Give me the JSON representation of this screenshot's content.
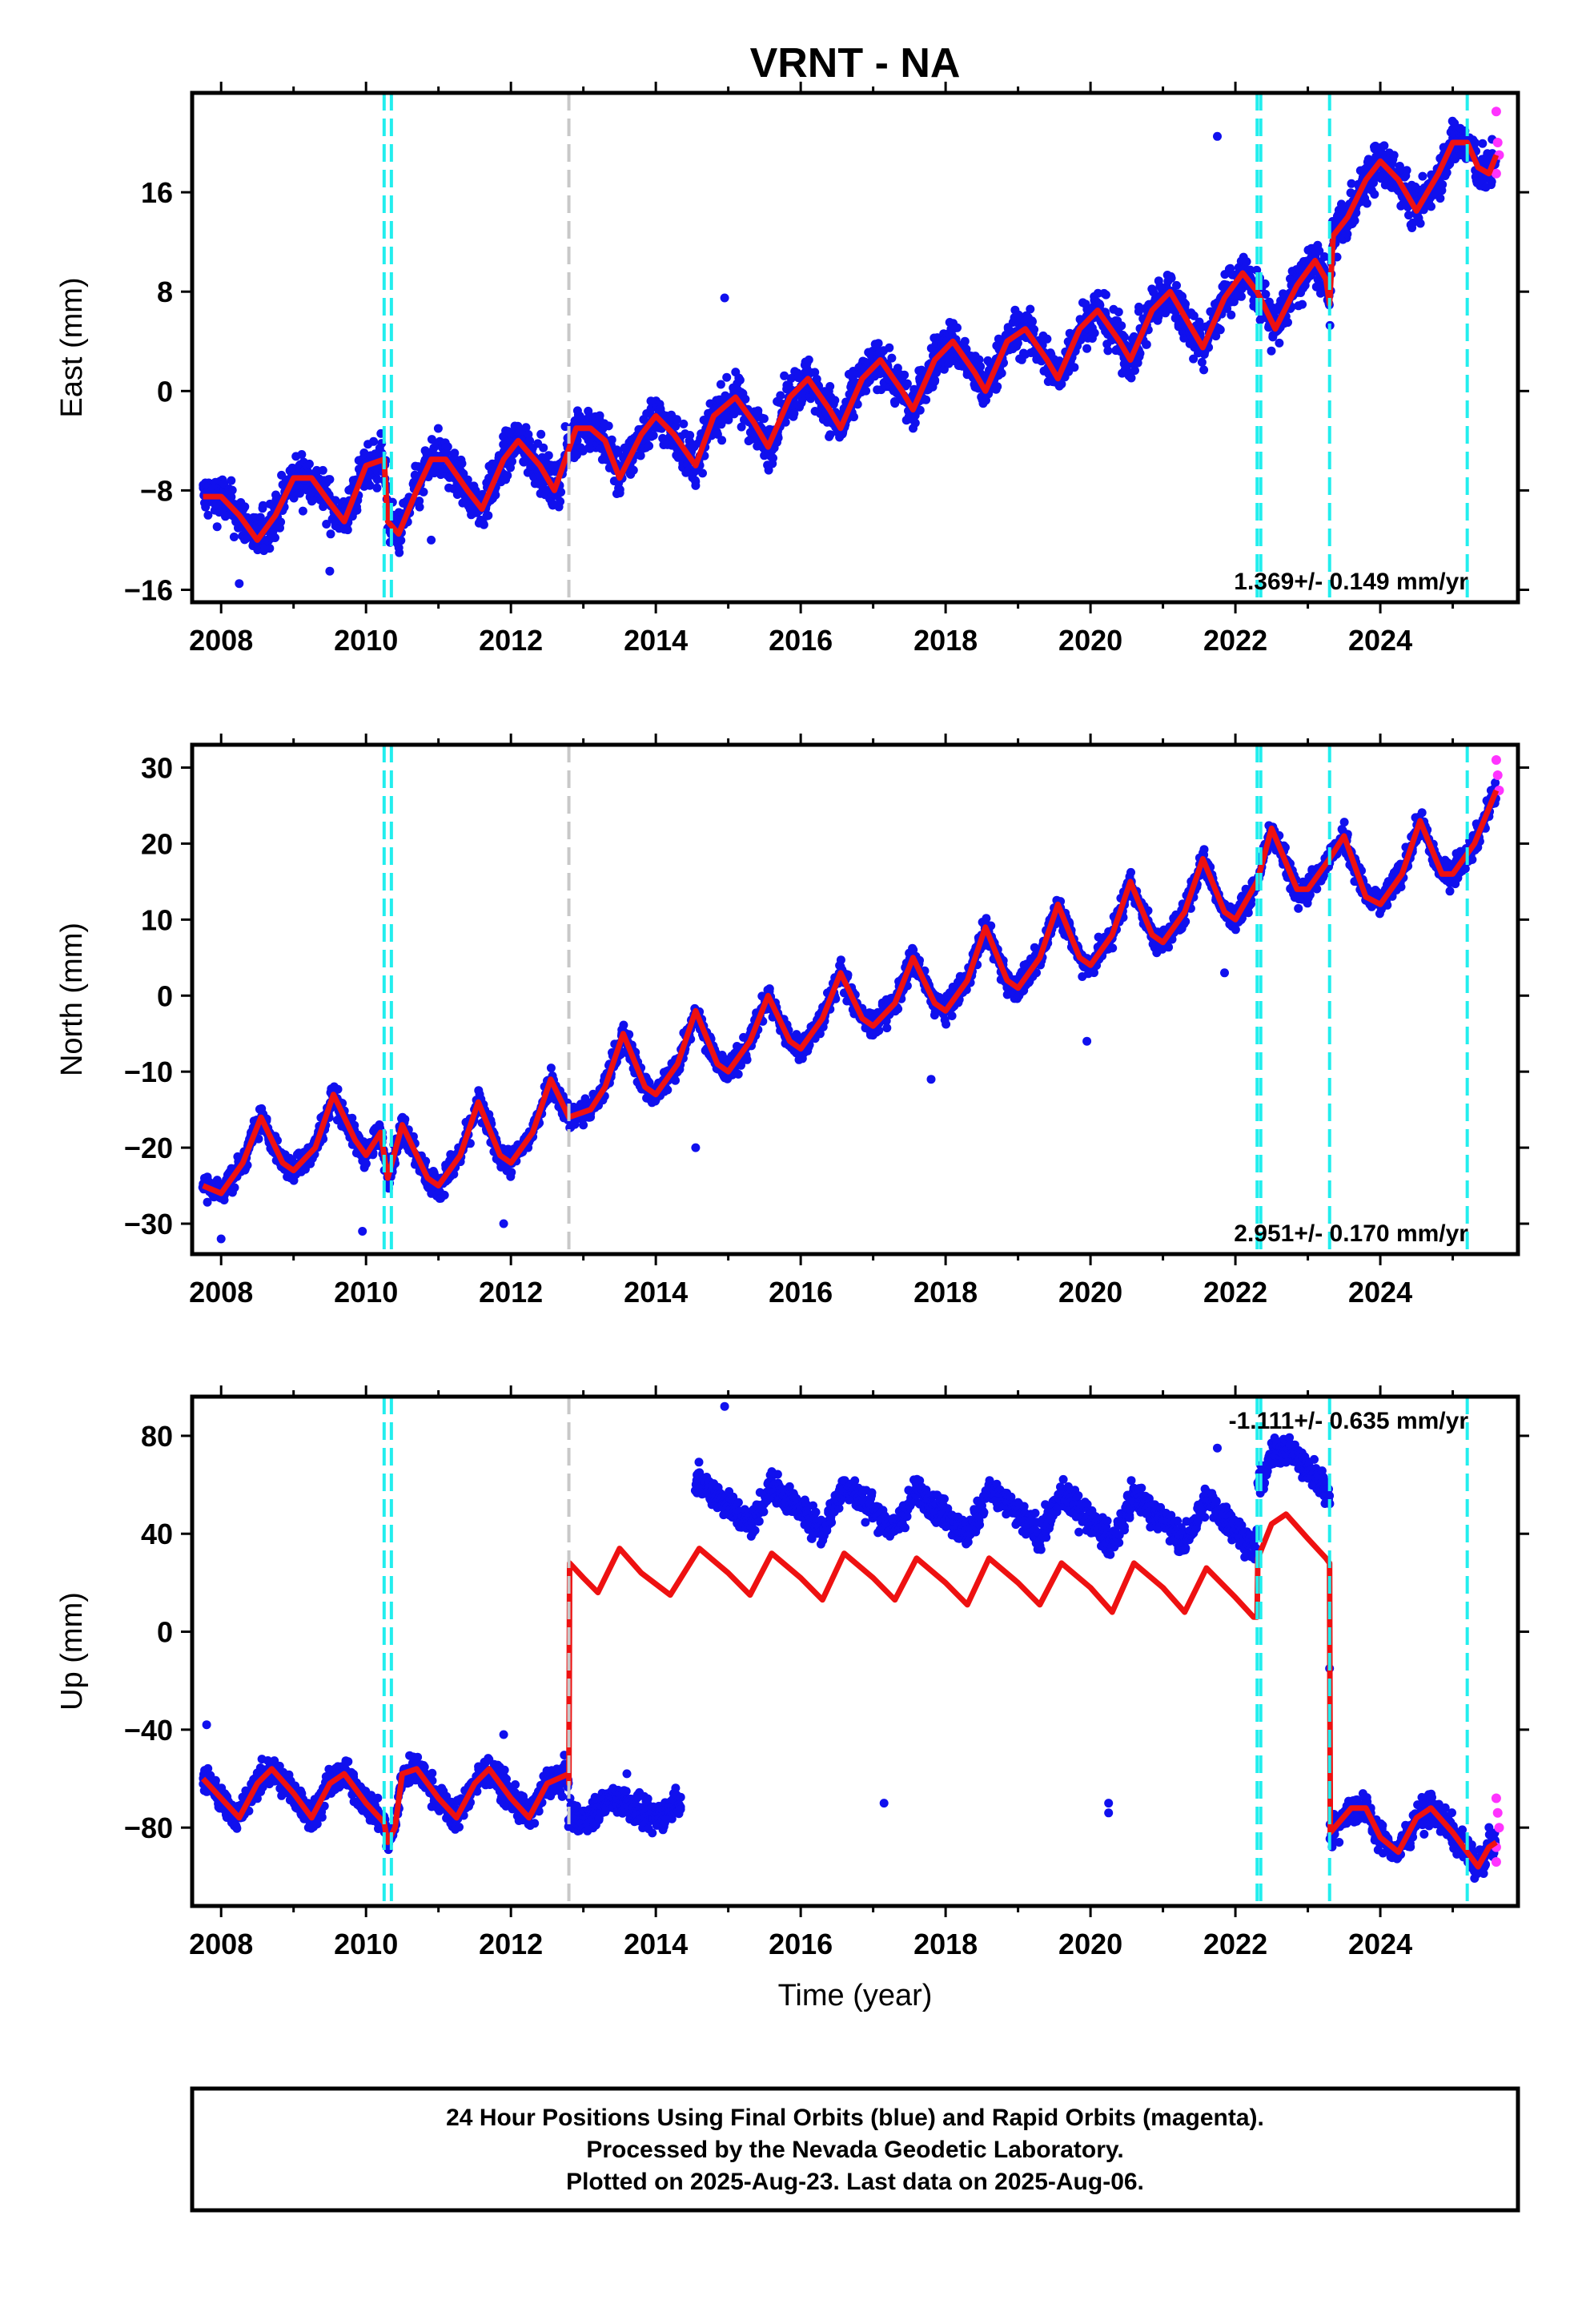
{
  "title": "VRNT - NA",
  "colors": {
    "final_orbits": "#1010ee",
    "rapid_orbits": "#ff33ff",
    "model": "#ee1111",
    "equipment_change": "#22eeee",
    "other_event": "#c8c8c8"
  },
  "chart_data": [
    {
      "type": "scatter",
      "ylabel": "East (mm)",
      "xlabel": "",
      "xlim": [
        2007.6,
        2025.9
      ],
      "ylim": [
        -17,
        24
      ],
      "xticks": [
        "2008",
        "2010",
        "2012",
        "2014",
        "2016",
        "2018",
        "2020",
        "2022",
        "2024"
      ],
      "yticks": [
        "-16",
        "-8",
        "0",
        "8",
        "16"
      ],
      "rate_label": "1.369+/- 0.149 mm/yr",
      "rate_position": "bottom-right",
      "model_knots": [
        [
          2007.75,
          -8.5
        ],
        [
          2008.0,
          -8.5
        ],
        [
          2008.25,
          -10
        ],
        [
          2008.5,
          -12
        ],
        [
          2008.75,
          -10
        ],
        [
          2009.0,
          -7
        ],
        [
          2009.25,
          -7
        ],
        [
          2009.5,
          -9
        ],
        [
          2009.7,
          -10.5
        ],
        [
          2010.0,
          -6
        ],
        [
          2010.25,
          -5.5
        ],
        [
          2010.3,
          -10.5
        ],
        [
          2010.45,
          -11.5
        ],
        [
          2010.7,
          -8
        ],
        [
          2010.9,
          -5.5
        ],
        [
          2011.1,
          -5.5
        ],
        [
          2011.4,
          -8
        ],
        [
          2011.6,
          -9.5
        ],
        [
          2011.9,
          -5.5
        ],
        [
          2012.1,
          -4
        ],
        [
          2012.4,
          -6
        ],
        [
          2012.6,
          -8
        ],
        [
          2012.9,
          -3
        ],
        [
          2013.1,
          -3
        ],
        [
          2013.3,
          -4
        ],
        [
          2013.5,
          -7
        ],
        [
          2013.8,
          -3.5
        ],
        [
          2014.0,
          -2
        ],
        [
          2014.25,
          -3.5
        ],
        [
          2014.55,
          -6
        ],
        [
          2014.8,
          -2
        ],
        [
          2015.1,
          -0.5
        ],
        [
          2015.35,
          -2.5
        ],
        [
          2015.55,
          -4.5
        ],
        [
          2015.85,
          -0.5
        ],
        [
          2016.1,
          1
        ],
        [
          2016.4,
          -1.5
        ],
        [
          2016.55,
          -3
        ],
        [
          2016.85,
          1
        ],
        [
          2017.1,
          2.5
        ],
        [
          2017.4,
          0
        ],
        [
          2017.55,
          -1.5
        ],
        [
          2017.85,
          2.5
        ],
        [
          2018.1,
          4
        ],
        [
          2018.4,
          1.5
        ],
        [
          2018.55,
          0
        ],
        [
          2018.85,
          4
        ],
        [
          2019.1,
          5
        ],
        [
          2019.4,
          2.5
        ],
        [
          2019.55,
          1
        ],
        [
          2019.85,
          5
        ],
        [
          2020.1,
          6.5
        ],
        [
          2020.4,
          4
        ],
        [
          2020.55,
          2.5
        ],
        [
          2020.85,
          6.5
        ],
        [
          2021.1,
          8
        ],
        [
          2021.4,
          5
        ],
        [
          2021.55,
          3.5
        ],
        [
          2021.85,
          7.5
        ],
        [
          2022.1,
          9.5
        ],
        [
          2022.3,
          8
        ],
        [
          2022.55,
          5
        ],
        [
          2022.85,
          8.5
        ],
        [
          2023.1,
          10.5
        ],
        [
          2023.25,
          9
        ],
        [
          2023.3,
          7
        ],
        [
          2023.35,
          12.5
        ],
        [
          2023.55,
          14
        ],
        [
          2023.8,
          17
        ],
        [
          2024.0,
          18.5
        ],
        [
          2024.25,
          17
        ],
        [
          2024.5,
          14.5
        ],
        [
          2024.8,
          17.5
        ],
        [
          2025.0,
          20
        ],
        [
          2025.2,
          20
        ],
        [
          2025.35,
          18
        ],
        [
          2025.5,
          17.5
        ],
        [
          2025.6,
          19
        ]
      ],
      "scatter_amplitude": 2.2,
      "outliers": [
        [
          2021.75,
          20.5
        ],
        [
          2014.95,
          7.5
        ],
        [
          2009.5,
          -14.5
        ],
        [
          2010.9,
          -12
        ],
        [
          2008.25,
          -15.5
        ]
      ],
      "rapid_points": [
        [
          2025.6,
          22.5
        ],
        [
          2025.62,
          20
        ],
        [
          2025.64,
          19
        ],
        [
          2025.6,
          17.5
        ]
      ],
      "equipment_changes": [
        2010.25,
        2010.35,
        2022.3,
        2022.35,
        2023.3,
        2025.2
      ],
      "other_events": [
        2012.8
      ]
    },
    {
      "type": "scatter",
      "ylabel": "North (mm)",
      "xlabel": "",
      "xlim": [
        2007.6,
        2025.9
      ],
      "ylim": [
        -34,
        33
      ],
      "xticks": [
        "2008",
        "2010",
        "2012",
        "2014",
        "2016",
        "2018",
        "2020",
        "2022",
        "2024"
      ],
      "yticks": [
        "-30",
        "-20",
        "-10",
        "0",
        "10",
        "20",
        "30"
      ],
      "rate_label": "2.951+/- 0.170 mm/yr",
      "rate_position": "bottom-right",
      "model_knots": [
        [
          2007.75,
          -25
        ],
        [
          2008.0,
          -26
        ],
        [
          2008.3,
          -22
        ],
        [
          2008.55,
          -16
        ],
        [
          2008.85,
          -22
        ],
        [
          2009.0,
          -23
        ],
        [
          2009.3,
          -20
        ],
        [
          2009.55,
          -13
        ],
        [
          2009.85,
          -19
        ],
        [
          2010.0,
          -21
        ],
        [
          2010.2,
          -18
        ],
        [
          2010.3,
          -24
        ],
        [
          2010.5,
          -17
        ],
        [
          2010.85,
          -24
        ],
        [
          2011.0,
          -25
        ],
        [
          2011.3,
          -21
        ],
        [
          2011.55,
          -14
        ],
        [
          2011.85,
          -21
        ],
        [
          2012.0,
          -22
        ],
        [
          2012.3,
          -18
        ],
        [
          2012.55,
          -11
        ],
        [
          2012.8,
          -16
        ],
        [
          2013.1,
          -15
        ],
        [
          2013.3,
          -12
        ],
        [
          2013.55,
          -5
        ],
        [
          2013.85,
          -12
        ],
        [
          2014.0,
          -13
        ],
        [
          2014.3,
          -9
        ],
        [
          2014.55,
          -2
        ],
        [
          2014.85,
          -9
        ],
        [
          2015.0,
          -10
        ],
        [
          2015.3,
          -6
        ],
        [
          2015.55,
          0
        ],
        [
          2015.85,
          -6
        ],
        [
          2016.0,
          -7
        ],
        [
          2016.3,
          -3
        ],
        [
          2016.55,
          3
        ],
        [
          2016.85,
          -3
        ],
        [
          2017.0,
          -4
        ],
        [
          2017.3,
          -1
        ],
        [
          2017.55,
          5
        ],
        [
          2017.85,
          -1
        ],
        [
          2018.0,
          -2
        ],
        [
          2018.3,
          2
        ],
        [
          2018.55,
          9
        ],
        [
          2018.85,
          2
        ],
        [
          2019.0,
          1
        ],
        [
          2019.3,
          5
        ],
        [
          2019.55,
          12
        ],
        [
          2019.85,
          5
        ],
        [
          2020.0,
          4
        ],
        [
          2020.3,
          8
        ],
        [
          2020.55,
          15
        ],
        [
          2020.85,
          8
        ],
        [
          2021.0,
          7
        ],
        [
          2021.3,
          11
        ],
        [
          2021.55,
          18
        ],
        [
          2021.85,
          11
        ],
        [
          2022.0,
          10
        ],
        [
          2022.3,
          15
        ],
        [
          2022.5,
          22
        ],
        [
          2022.85,
          14
        ],
        [
          2023.0,
          14
        ],
        [
          2023.3,
          18
        ],
        [
          2023.5,
          21
        ],
        [
          2023.8,
          13
        ],
        [
          2024.0,
          12
        ],
        [
          2024.3,
          16
        ],
        [
          2024.55,
          23
        ],
        [
          2024.85,
          16
        ],
        [
          2025.0,
          16
        ],
        [
          2025.3,
          20
        ],
        [
          2025.6,
          27
        ]
      ],
      "scatter_amplitude": 2.0,
      "outliers": [
        [
          2014.55,
          -20
        ],
        [
          2017.8,
          -11
        ],
        [
          2019.95,
          -6
        ],
        [
          2021.85,
          3
        ],
        [
          2009.95,
          -31
        ],
        [
          2008.0,
          -32
        ],
        [
          2011.9,
          -30
        ]
      ],
      "rapid_points": [
        [
          2025.6,
          31
        ],
        [
          2025.62,
          29
        ],
        [
          2025.64,
          27
        ]
      ],
      "equipment_changes": [
        2010.25,
        2010.35,
        2022.3,
        2022.35,
        2023.3,
        2025.2
      ],
      "other_events": [
        2012.8
      ]
    },
    {
      "type": "scatter",
      "ylabel": "Up (mm)",
      "xlabel": "Time (year)",
      "xlim": [
        2007.6,
        2025.9
      ],
      "ylim": [
        -112,
        96
      ],
      "xticks": [
        "2008",
        "2010",
        "2012",
        "2014",
        "2016",
        "2018",
        "2020",
        "2022",
        "2024"
      ],
      "yticks": [
        "-80",
        "-40",
        "0",
        "40",
        "80"
      ],
      "rate_label": "-1.111+/- 0.635 mm/yr",
      "rate_position": "top-right",
      "model_knots": [
        [
          2007.75,
          -60
        ],
        [
          2008.0,
          -68
        ],
        [
          2008.25,
          -76
        ],
        [
          2008.5,
          -62
        ],
        [
          2008.7,
          -56
        ],
        [
          2009.0,
          -66
        ],
        [
          2009.25,
          -76
        ],
        [
          2009.5,
          -62
        ],
        [
          2009.7,
          -58
        ],
        [
          2010.0,
          -70
        ],
        [
          2010.25,
          -78
        ],
        [
          2010.3,
          -86
        ],
        [
          2010.4,
          -80
        ],
        [
          2010.5,
          -58
        ],
        [
          2010.7,
          -56
        ],
        [
          2011.0,
          -68
        ],
        [
          2011.25,
          -76
        ],
        [
          2011.5,
          -62
        ],
        [
          2011.7,
          -56
        ],
        [
          2012.0,
          -68
        ],
        [
          2012.25,
          -76
        ],
        [
          2012.5,
          -62
        ],
        [
          2012.8,
          -58
        ],
        [
          2012.8,
          -62
        ],
        [
          2012.81,
          28
        ],
        [
          2013.0,
          22
        ],
        [
          2013.2,
          16
        ],
        [
          2013.5,
          34
        ],
        [
          2013.8,
          24
        ],
        [
          2014.2,
          15
        ],
        [
          2014.6,
          34
        ],
        [
          2015.0,
          24
        ],
        [
          2015.3,
          15
        ],
        [
          2015.6,
          32
        ],
        [
          2016.0,
          22
        ],
        [
          2016.3,
          13
        ],
        [
          2016.6,
          32
        ],
        [
          2017.0,
          22
        ],
        [
          2017.3,
          13
        ],
        [
          2017.6,
          30
        ],
        [
          2018.0,
          20
        ],
        [
          2018.3,
          11
        ],
        [
          2018.6,
          30
        ],
        [
          2019.0,
          20
        ],
        [
          2019.3,
          11
        ],
        [
          2019.6,
          28
        ],
        [
          2020.0,
          18
        ],
        [
          2020.3,
          8
        ],
        [
          2020.6,
          28
        ],
        [
          2021.0,
          18
        ],
        [
          2021.3,
          8
        ],
        [
          2021.6,
          26
        ],
        [
          2022.0,
          14
        ],
        [
          2022.25,
          6
        ],
        [
          2022.3,
          6
        ],
        [
          2022.31,
          30
        ],
        [
          2022.5,
          44
        ],
        [
          2022.7,
          48
        ],
        [
          2023.0,
          38
        ],
        [
          2023.25,
          30
        ],
        [
          2023.3,
          28
        ],
        [
          2023.31,
          -82
        ],
        [
          2023.6,
          -72
        ],
        [
          2023.8,
          -72
        ],
        [
          2024.0,
          -84
        ],
        [
          2024.25,
          -90
        ],
        [
          2024.5,
          -76
        ],
        [
          2024.7,
          -72
        ],
        [
          2025.0,
          -82
        ],
        [
          2025.2,
          -90
        ],
        [
          2025.35,
          -96
        ],
        [
          2025.5,
          -88
        ],
        [
          2025.6,
          -86
        ]
      ],
      "data_segments": [
        {
          "from": 2007.75,
          "to": 2012.8,
          "offset": 0,
          "follow": true
        },
        {
          "from": 2012.8,
          "to": 2014.35,
          "offset": -72,
          "follow": false
        },
        {
          "from": 2014.55,
          "to": 2023.3,
          "offset": 28,
          "follow": true
        },
        {
          "from": 2023.31,
          "to": 2025.6,
          "offset": 0,
          "follow": true
        }
      ],
      "scatter_amplitude": 7,
      "outliers": [
        [
          2014.95,
          92
        ],
        [
          2021.75,
          75
        ],
        [
          2017.15,
          -70
        ],
        [
          2020.25,
          -70
        ],
        [
          2020.25,
          -74
        ],
        [
          2013.6,
          -58
        ],
        [
          2011.9,
          -42
        ],
        [
          2007.8,
          -38
        ],
        [
          2023.3,
          -15
        ]
      ],
      "rapid_points": [
        [
          2025.6,
          -68
        ],
        [
          2025.62,
          -74
        ],
        [
          2025.64,
          -80
        ],
        [
          2025.6,
          -88
        ],
        [
          2025.6,
          -94
        ]
      ],
      "equipment_changes": [
        2010.25,
        2010.35,
        2022.3,
        2022.35,
        2023.3,
        2025.2
      ],
      "other_events": [
        2012.8
      ]
    }
  ],
  "footer": {
    "line1": "24 Hour Positions Using Final Orbits (blue) and Rapid Orbits (magenta).",
    "line2": "Processed by the Nevada Geodetic Laboratory.",
    "line3": "Plotted on 2025-Aug-23. Last data on 2025-Aug-06."
  }
}
